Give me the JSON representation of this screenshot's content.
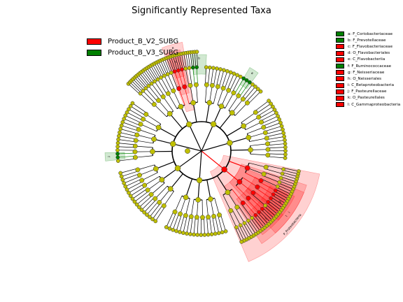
{
  "chart_data": {
    "type": "cladogram",
    "title": "Significantly Represented Taxa",
    "classes": [
      {
        "name": "Product_B_V2_SUBG",
        "color": "#ff0000"
      },
      {
        "name": "Product_B_V3_SUBG",
        "color": "#008000"
      }
    ],
    "clade_legend": [
      {
        "letter": "a",
        "text": "a: F_Coriobacteriaceae",
        "class": 1
      },
      {
        "letter": "b",
        "text": "b: F_Prevotellaceae",
        "class": 1
      },
      {
        "letter": "c",
        "text": "c: F_Flavobacteriaceae",
        "class": 0
      },
      {
        "letter": "d",
        "text": "d: O_Flavobacteriales",
        "class": 0
      },
      {
        "letter": "e",
        "text": "e: C_Flavobacteriia",
        "class": 0
      },
      {
        "letter": "f",
        "text": "f: F_Ruminococcaceae",
        "class": 1
      },
      {
        "letter": "g",
        "text": "g: F_Neisseriaceae",
        "class": 0
      },
      {
        "letter": "h",
        "text": "h: O_Neisseriales",
        "class": 0
      },
      {
        "letter": "i",
        "text": "i: C_Betaproteobacteria",
        "class": 0
      },
      {
        "letter": "j",
        "text": "j: F_Pasteurellaceae",
        "class": 0
      },
      {
        "letter": "k",
        "text": "k: O_Pasteurellales",
        "class": 0
      },
      {
        "letter": "l",
        "text": "l: C_Gammaproteobacteria",
        "class": 0
      }
    ],
    "highlights": [
      {
        "label": "P_Proteobacteria",
        "class": 0,
        "level": 1,
        "start": 101,
        "end": 157
      },
      {
        "label": "l",
        "class": 0,
        "level": 2,
        "start": 108,
        "end": 147
      },
      {
        "label": "i",
        "class": 0,
        "level": 2,
        "start": 112,
        "end": 138
      },
      {
        "label": "k",
        "class": 0,
        "level": 3,
        "start": 128,
        "end": 144
      },
      {
        "label": "h",
        "class": 0,
        "level": 3,
        "start": 116,
        "end": 132
      },
      {
        "label": "g",
        "class": 0,
        "level": 4,
        "start": 117,
        "end": 129
      },
      {
        "label": "j",
        "class": 0,
        "level": 4,
        "start": 131,
        "end": 142
      },
      {
        "label": "e",
        "class": 0,
        "level": 2,
        "start": 339,
        "end": 350
      },
      {
        "label": "d",
        "class": 0,
        "level": 3,
        "start": 340,
        "end": 348
      },
      {
        "label": "c",
        "class": 0,
        "level": 4,
        "start": 341,
        "end": 347
      },
      {
        "label": "b",
        "class": 1,
        "level": 4,
        "start": 354,
        "end": 363
      },
      {
        "label": "a",
        "class": 1,
        "level": 4,
        "start": 30,
        "end": 36
      },
      {
        "label": "f",
        "class": 1,
        "level": 4,
        "start": 264,
        "end": 269
      }
    ],
    "background_color": "#ffffff",
    "node_color": "#bfbf00"
  }
}
